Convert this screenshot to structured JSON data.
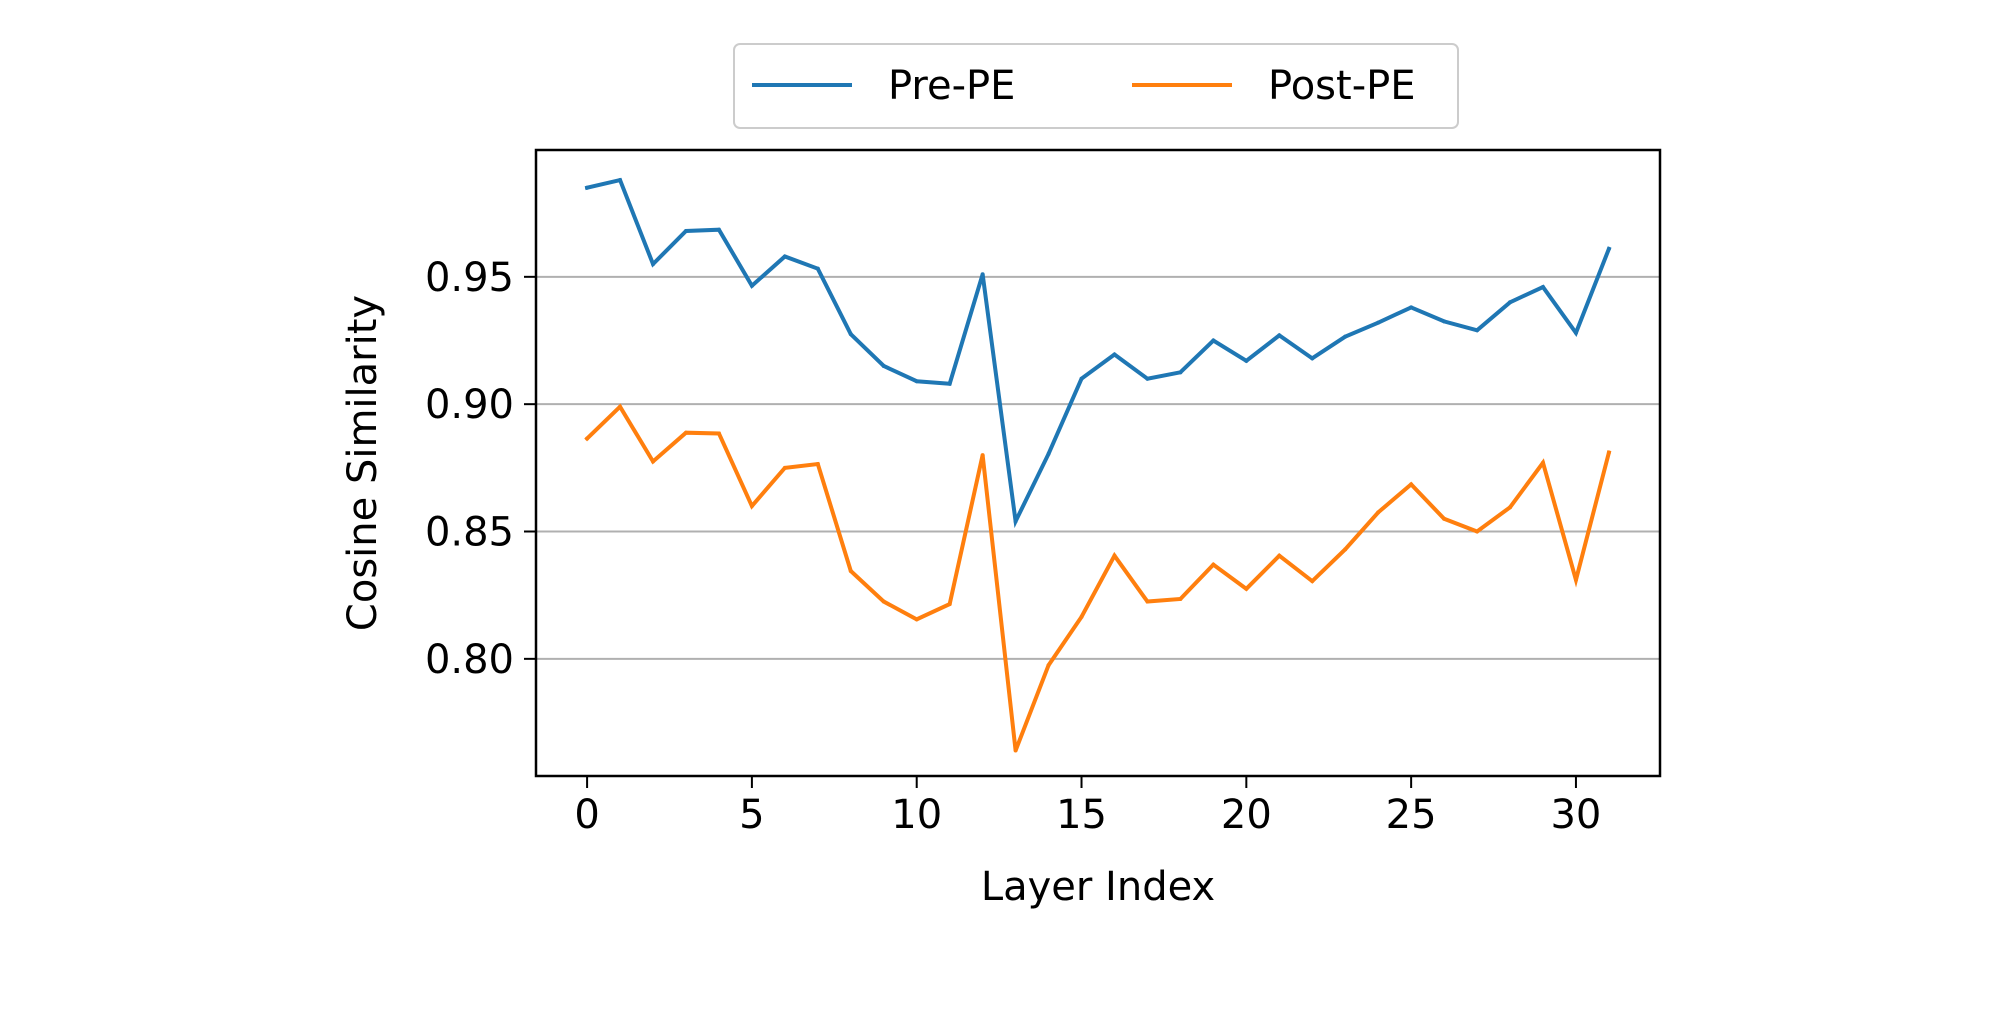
{
  "chart_data": {
    "type": "line",
    "title": "",
    "xlabel": "Layer Index",
    "ylabel": "Cosine Similarity",
    "xlim": [
      -1.55,
      32.55
    ],
    "ylim": [
      0.754,
      0.9998
    ],
    "xticks": [
      0,
      5,
      10,
      15,
      20,
      25,
      30
    ],
    "yticks": [
      0.8,
      0.85,
      0.9,
      0.95
    ],
    "ytick_labels": [
      "0.80",
      "0.85",
      "0.90",
      "0.95"
    ],
    "grid": "horizontal",
    "legend": "top-center",
    "x": [
      0,
      1,
      2,
      3,
      4,
      5,
      6,
      7,
      8,
      9,
      10,
      11,
      12,
      13,
      14,
      15,
      16,
      17,
      18,
      19,
      20,
      21,
      22,
      23,
      24,
      25,
      26,
      27,
      28,
      29,
      30,
      31
    ],
    "series": [
      {
        "name": "Pre-PE",
        "color": "#1f77b4",
        "values": [
          0.985,
          0.988,
          0.955,
          0.968,
          0.9685,
          0.9465,
          0.958,
          0.9532,
          0.9275,
          0.915,
          0.909,
          0.908,
          0.951,
          0.854,
          0.8805,
          0.91,
          0.9195,
          0.91,
          0.9125,
          0.925,
          0.917,
          0.927,
          0.918,
          0.9265,
          0.932,
          0.938,
          0.9325,
          0.929,
          0.94,
          0.946,
          0.928,
          0.961
        ]
      },
      {
        "name": "Post-PE",
        "color": "#ff7f0e",
        "values": [
          0.8865,
          0.899,
          0.8775,
          0.8888,
          0.8885,
          0.86,
          0.875,
          0.8765,
          0.8345,
          0.8225,
          0.8155,
          0.8215,
          0.88,
          0.764,
          0.7975,
          0.8165,
          0.8405,
          0.8225,
          0.8235,
          0.837,
          0.8275,
          0.8405,
          0.8305,
          0.843,
          0.8575,
          0.8685,
          0.855,
          0.85,
          0.8595,
          0.877,
          0.831,
          0.881
        ]
      }
    ]
  }
}
